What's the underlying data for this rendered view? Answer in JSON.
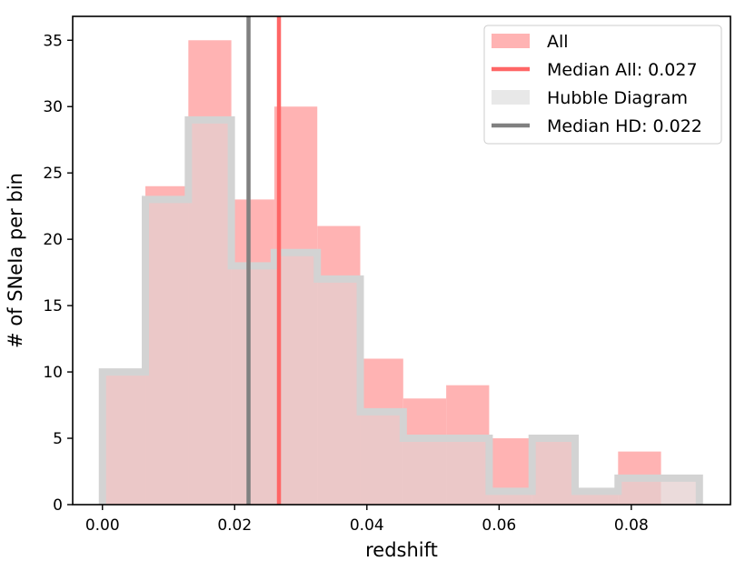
{
  "chart_data": {
    "type": "histogram",
    "xlabel": "redshift",
    "ylabel": "# of SNeIa per bin",
    "xlim": [
      -0.0045,
      0.095
    ],
    "ylim": [
      0,
      36.8
    ],
    "xticks": [
      0.0,
      0.02,
      0.04,
      0.06,
      0.08
    ],
    "xtick_labels": [
      "0.00",
      "0.02",
      "0.04",
      "0.06",
      "0.08"
    ],
    "yticks": [
      0,
      5,
      10,
      15,
      20,
      25,
      30,
      35
    ],
    "ytick_labels": [
      "0",
      "5",
      "10",
      "15",
      "20",
      "25",
      "30",
      "35"
    ],
    "grid": false,
    "legend_position": "top-right",
    "series": [
      {
        "name": "All",
        "kind": "filled-histogram",
        "color": "#ffb3b3",
        "bin_edges": [
          0.0,
          0.0065,
          0.013,
          0.0195,
          0.026,
          0.0325,
          0.039,
          0.0455,
          0.052,
          0.0585,
          0.065,
          0.0715,
          0.078,
          0.0845
        ],
        "counts": [
          10,
          24,
          35,
          23,
          30,
          21,
          11,
          8,
          9,
          5,
          5,
          1,
          4
        ]
      },
      {
        "name": "Hubble Diagram",
        "kind": "step-outline-histogram",
        "color": "#d3d3d3",
        "bin_edges": [
          0.0,
          0.0065,
          0.013,
          0.0195,
          0.026,
          0.0325,
          0.039,
          0.0455,
          0.052,
          0.0585,
          0.065,
          0.0715,
          0.078,
          0.0845,
          0.0903
        ],
        "counts": [
          10,
          23,
          29,
          18,
          19,
          17,
          7,
          5,
          5,
          1,
          5,
          1,
          2,
          2
        ]
      }
    ],
    "lines": [
      {
        "name": "Median All: 0.027",
        "x": 0.0267,
        "color": "#ff6666"
      },
      {
        "name": "Median HD: 0.022",
        "x": 0.0221,
        "color": "#808080"
      }
    ],
    "legend": [
      {
        "label": "All",
        "kind": "patch",
        "color": "#ffb3b3"
      },
      {
        "label": "Median All: 0.027",
        "kind": "line",
        "color": "#ff6666"
      },
      {
        "label": "Hubble Diagram",
        "kind": "patch",
        "color": "#e8e8e8"
      },
      {
        "label": "Median HD: 0.022",
        "kind": "line",
        "color": "#808080"
      }
    ]
  }
}
